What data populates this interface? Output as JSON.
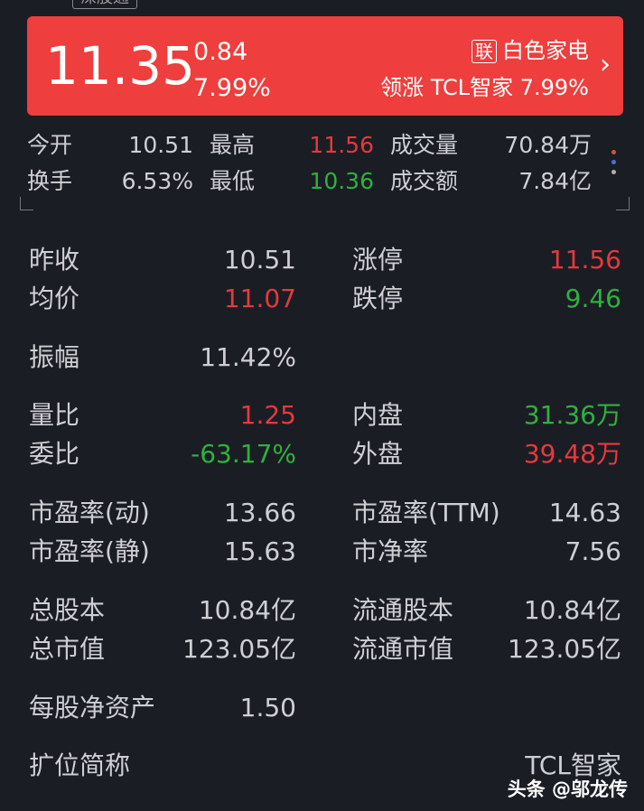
{
  "tag": "深股通",
  "quote": {
    "price": "11.35",
    "change": "0.84",
    "change_pct": "7.99%",
    "sector_badge": "联",
    "sector": "白色家电",
    "leader": "领涨 TCL智家 7.99%"
  },
  "summary": [
    {
      "label": "今开",
      "value": "10.51",
      "color": "normal"
    },
    {
      "label": "最高",
      "value": "11.56",
      "color": "red"
    },
    {
      "label": "成交量",
      "value": "70.84万",
      "color": "normal"
    },
    {
      "label": "换手",
      "value": "6.53%",
      "color": "normal"
    },
    {
      "label": "最低",
      "value": "10.36",
      "color": "green"
    },
    {
      "label": "成交额",
      "value": "7.84亿",
      "color": "normal"
    }
  ],
  "dot_colors": [
    "#d0533f",
    "#4a6fd8",
    "#b0b0b0"
  ],
  "details": [
    {
      "label": "昨收",
      "value": "10.51",
      "color": "normal",
      "r_label": "涨停",
      "r_value": "11.56",
      "r_color": "red"
    },
    {
      "label": "均价",
      "value": "11.07",
      "color": "red",
      "r_label": "跌停",
      "r_value": "9.46",
      "r_color": "green"
    },
    {
      "label": "振幅",
      "value": "11.42%",
      "color": "normal",
      "r_label": "",
      "r_value": "",
      "r_color": "normal"
    },
    {
      "label": "量比",
      "value": "1.25",
      "color": "red",
      "r_label": "内盘",
      "r_value": "31.36万",
      "r_color": "green"
    },
    {
      "label": "委比",
      "value": "-63.17%",
      "color": "green",
      "r_label": "外盘",
      "r_value": "39.48万",
      "r_color": "red"
    },
    {
      "label": "市盈率(动)",
      "value": "13.66",
      "color": "normal",
      "r_label": "市盈率(TTM)",
      "r_value": "14.63",
      "r_color": "normal"
    },
    {
      "label": "市盈率(静)",
      "value": "15.63",
      "color": "normal",
      "r_label": "市净率",
      "r_value": "7.56",
      "r_color": "normal"
    },
    {
      "label": "总股本",
      "value": "10.84亿",
      "color": "normal",
      "r_label": "流通股本",
      "r_value": "10.84亿",
      "r_color": "normal"
    },
    {
      "label": "总市值",
      "value": "123.05亿",
      "color": "normal",
      "r_label": "流通市值",
      "r_value": "123.05亿",
      "r_color": "normal"
    },
    {
      "label": "每股净资产",
      "value": "1.50",
      "color": "normal",
      "r_label": "",
      "r_value": "",
      "r_color": "normal"
    },
    {
      "label": "扩位简称",
      "value": "",
      "color": "normal",
      "r_label": "",
      "r_value": "TCL智家",
      "r_color": "normal"
    }
  ],
  "watermark": "头条 @邬龙传"
}
